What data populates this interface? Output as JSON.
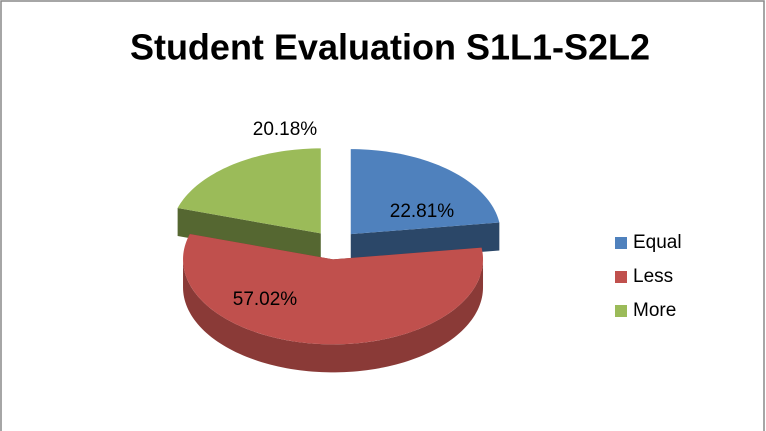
{
  "chart_data": {
    "type": "pie",
    "title": "Student Evaluation S1L1-S2L2",
    "categories": [
      "Equal",
      "Less",
      "More"
    ],
    "values": [
      22.81,
      57.02,
      20.18
    ],
    "value_labels": [
      "22.81%",
      "57.02%",
      "20.18%"
    ],
    "colors": [
      "#4f81bd",
      "#c0504d",
      "#9bbb59"
    ],
    "legend": "right"
  }
}
